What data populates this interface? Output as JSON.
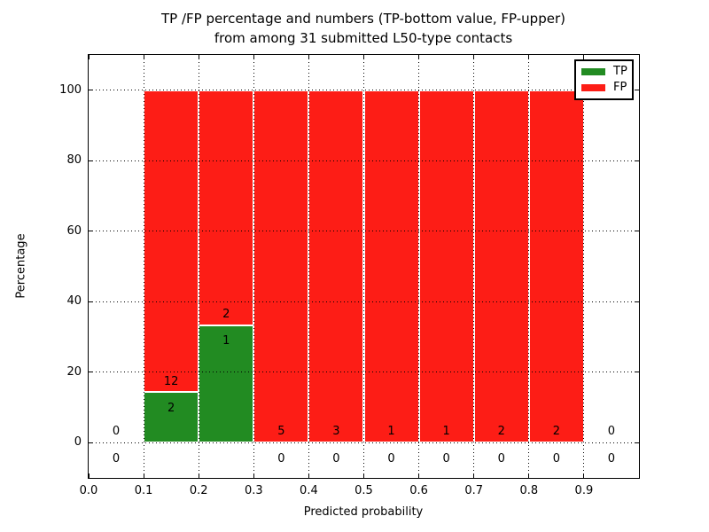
{
  "figure": {
    "title_line1": "TP /FP percentage and numbers (TP-bottom value, FP-upper)",
    "title_line2": "from among 31 submitted L50-type contacts"
  },
  "axes": {
    "xlabel": "Predicted probability",
    "ylabel": "Percentage",
    "xtick_labels": [
      "0.0",
      "0.1",
      "0.2",
      "0.3",
      "0.4",
      "0.5",
      "0.6",
      "0.7",
      "0.8",
      "0.9"
    ],
    "ytick_labels": [
      "0",
      "20",
      "40",
      "60",
      "80",
      "100"
    ]
  },
  "legend": {
    "entries": [
      {
        "label": "TP",
        "color": "#228b22"
      },
      {
        "label": "FP",
        "color": "#fd1d16"
      }
    ]
  },
  "colors": {
    "tp_green": "#228b22",
    "fp_red": "#fd1d16",
    "grid": "#000000",
    "bar_edge": "#ffffff",
    "text": "#000000"
  },
  "chart_data": {
    "type": "bar",
    "stacked": true,
    "title": "TP /FP percentage and numbers (TP-bottom value, FP-upper) from among 31 submitted L50-type contacts",
    "xlabel": "Predicted probability",
    "ylabel": "Percentage",
    "xlim": [
      0.0,
      1.0
    ],
    "ylim": [
      -10,
      110
    ],
    "xticks": [
      0.0,
      0.1,
      0.2,
      0.3,
      0.4,
      0.5,
      0.6,
      0.7,
      0.8,
      0.9
    ],
    "yticks": [
      0,
      20,
      40,
      60,
      80,
      100
    ],
    "grid": "dotted-black-above-bars",
    "legend_position": "upper right",
    "series": [
      {
        "name": "TP",
        "color": "#228b22",
        "position": "bottom"
      },
      {
        "name": "FP",
        "color": "#fd1d16",
        "position": "upper"
      }
    ],
    "bins": [
      {
        "range": [
          0.0,
          0.1
        ],
        "tp_count": 0,
        "fp_count": 0,
        "tp_pct": 0,
        "fp_pct": 0,
        "bar": false
      },
      {
        "range": [
          0.1,
          0.2
        ],
        "tp_count": 2,
        "fp_count": 12,
        "tp_pct": 14.2857,
        "fp_pct": 85.7143,
        "bar": true
      },
      {
        "range": [
          0.2,
          0.3
        ],
        "tp_count": 1,
        "fp_count": 2,
        "tp_pct": 33.3333,
        "fp_pct": 66.6667,
        "bar": true
      },
      {
        "range": [
          0.3,
          0.4
        ],
        "tp_count": 0,
        "fp_count": 5,
        "tp_pct": 0,
        "fp_pct": 100,
        "bar": true
      },
      {
        "range": [
          0.4,
          0.5
        ],
        "tp_count": 0,
        "fp_count": 3,
        "tp_pct": 0,
        "fp_pct": 100,
        "bar": true
      },
      {
        "range": [
          0.5,
          0.6
        ],
        "tp_count": 0,
        "fp_count": 1,
        "tp_pct": 0,
        "fp_pct": 100,
        "bar": true
      },
      {
        "range": [
          0.6,
          0.7
        ],
        "tp_count": 0,
        "fp_count": 1,
        "tp_pct": 0,
        "fp_pct": 100,
        "bar": true
      },
      {
        "range": [
          0.7,
          0.8
        ],
        "tp_count": 0,
        "fp_count": 2,
        "tp_pct": 0,
        "fp_pct": 100,
        "bar": true
      },
      {
        "range": [
          0.8,
          0.9
        ],
        "tp_count": 0,
        "fp_count": 2,
        "tp_pct": 0,
        "fp_pct": 100,
        "bar": true
      },
      {
        "range": [
          0.9,
          1.0
        ],
        "tp_count": 0,
        "fp_count": 0,
        "tp_pct": 0,
        "fp_pct": 0,
        "bar": false
      }
    ]
  }
}
